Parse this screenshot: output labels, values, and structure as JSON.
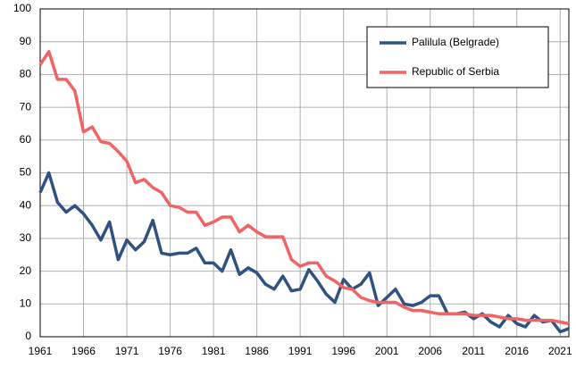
{
  "chart_data": {
    "type": "line",
    "x": [
      1961,
      1962,
      1963,
      1964,
      1965,
      1966,
      1967,
      1968,
      1969,
      1970,
      1971,
      1972,
      1973,
      1974,
      1975,
      1976,
      1977,
      1978,
      1979,
      1980,
      1981,
      1982,
      1983,
      1984,
      1985,
      1986,
      1987,
      1988,
      1989,
      1990,
      1991,
      1992,
      1993,
      1994,
      1995,
      1996,
      1997,
      1998,
      1999,
      2000,
      2001,
      2002,
      2003,
      2004,
      2005,
      2006,
      2007,
      2008,
      2009,
      2010,
      2011,
      2012,
      2013,
      2014,
      2015,
      2016,
      2017,
      2018,
      2019,
      2020,
      2021,
      2022
    ],
    "series": [
      {
        "name": "Palilula (Belgrade)",
        "color": "#2f5282",
        "values": [
          44,
          50,
          41,
          38,
          40,
          37.5,
          34,
          29.5,
          35,
          23.5,
          29.5,
          26.5,
          29,
          35.5,
          25.5,
          25,
          25.5,
          25.5,
          27,
          22.5,
          22.5,
          20,
          26.5,
          19,
          21,
          19.5,
          16,
          14.5,
          18.5,
          14,
          14.5,
          20.5,
          17,
          13,
          10.5,
          17.5,
          14.5,
          16,
          19.5,
          9.5,
          12,
          14.5,
          10,
          9.5,
          10.5,
          12.5,
          12.5,
          7,
          7,
          7.5,
          5.5,
          7,
          4.5,
          3,
          6.5,
          4,
          3,
          6.5,
          4.5,
          5,
          1.5,
          2.5
        ]
      },
      {
        "name": "Republic of Serbia",
        "color": "#f26363",
        "values": [
          83,
          87,
          78.5,
          78.5,
          75,
          62.5,
          64,
          59.5,
          59,
          56.5,
          53.5,
          47,
          48,
          45.5,
          44,
          40,
          39.5,
          38,
          38,
          34,
          35,
          36.5,
          36.5,
          32,
          34,
          32,
          30.5,
          30.5,
          30.5,
          23.5,
          21.5,
          22.5,
          22.5,
          18.5,
          17,
          15,
          14.5,
          12,
          11,
          10.5,
          10.5,
          10.5,
          9,
          8,
          8,
          7.5,
          7,
          7,
          7,
          7,
          6.5,
          6.5,
          6.5,
          6,
          5.5,
          5.5,
          5,
          5,
          5,
          5,
          4.5,
          4
        ]
      }
    ],
    "xlim": [
      1961,
      2022
    ],
    "xticks": [
      1961,
      1966,
      1971,
      1976,
      1981,
      1986,
      1991,
      1996,
      2001,
      2006,
      2011,
      2016,
      2021
    ],
    "ylim": [
      0,
      100
    ],
    "yticks": [
      0,
      10,
      20,
      30,
      40,
      50,
      60,
      70,
      80,
      90,
      100
    ],
    "grid": true,
    "legend": "top-right"
  }
}
